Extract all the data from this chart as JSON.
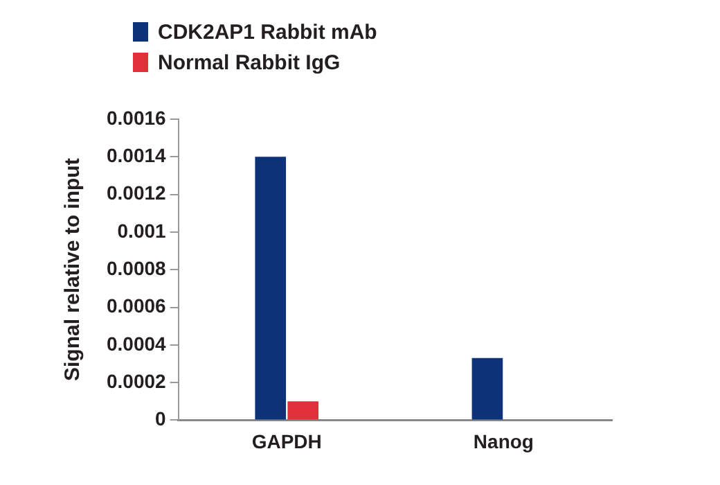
{
  "chart_data": {
    "type": "bar",
    "ylabel": "Signal relative to input",
    "categories": [
      "GAPDH",
      "Nanog"
    ],
    "series": [
      {
        "name": "CDK2AP1 Rabbit mAb",
        "color": "#0d3278",
        "values": [
          0.0014,
          0.00033
        ]
      },
      {
        "name": "Normal Rabbit IgG",
        "color": "#e0313a",
        "values": [
          0.0001,
          0
        ]
      }
    ],
    "ylim": [
      0,
      0.0016
    ],
    "yticks": [
      0,
      0.0002,
      0.0004,
      0.0006,
      0.0008,
      0.001,
      0.0012,
      0.0014,
      0.0016
    ],
    "grid": false,
    "legend": "top"
  }
}
